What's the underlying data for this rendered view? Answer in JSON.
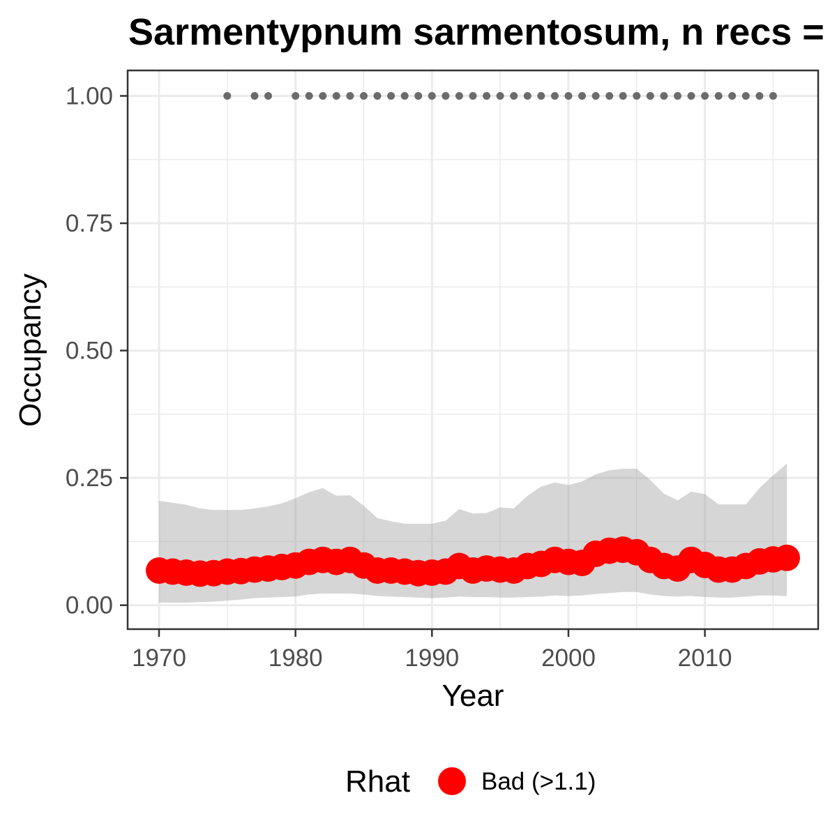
{
  "chart_data": {
    "type": "line",
    "title": "Sarmentypnum sarmentosum, n recs =",
    "xlabel": "Year",
    "ylabel": "Occupancy",
    "xlim": [
      1967.7,
      2018.3
    ],
    "ylim": [
      -0.047,
      1.05
    ],
    "grid": true,
    "x_ticks": [
      1970,
      1980,
      1990,
      2000,
      2010
    ],
    "x_tick_labels": [
      "1970",
      "1980",
      "1990",
      "2000",
      "2010"
    ],
    "x_minor_ticks": [
      1975,
      1985,
      1995,
      2005,
      2015
    ],
    "y_ticks": [
      0,
      0.25,
      0.5,
      0.75,
      1.0
    ],
    "y_tick_labels": [
      "0.00",
      "0.25",
      "0.50",
      "0.75",
      "1.00"
    ],
    "y_minor_ticks": [
      0.125,
      0.375,
      0.625,
      0.875
    ],
    "x": [
      1970,
      1971,
      1972,
      1973,
      1974,
      1975,
      1976,
      1977,
      1978,
      1979,
      1980,
      1981,
      1982,
      1983,
      1984,
      1985,
      1986,
      1987,
      1988,
      1989,
      1990,
      1991,
      1992,
      1993,
      1994,
      1995,
      1996,
      1997,
      1998,
      1999,
      2000,
      2001,
      2002,
      2003,
      2004,
      2005,
      2006,
      2007,
      2008,
      2009,
      2010,
      2011,
      2012,
      2013,
      2014,
      2015,
      2016
    ],
    "series": [
      {
        "name": "Bad (>1.1)",
        "color": "#ff0000",
        "values": [
          0.068,
          0.066,
          0.064,
          0.062,
          0.063,
          0.066,
          0.067,
          0.07,
          0.072,
          0.075,
          0.078,
          0.085,
          0.089,
          0.085,
          0.089,
          0.078,
          0.068,
          0.068,
          0.066,
          0.063,
          0.064,
          0.066,
          0.077,
          0.068,
          0.072,
          0.07,
          0.068,
          0.077,
          0.081,
          0.089,
          0.085,
          0.083,
          0.101,
          0.107,
          0.109,
          0.104,
          0.089,
          0.077,
          0.072,
          0.089,
          0.079,
          0.07,
          0.07,
          0.077,
          0.086,
          0.09,
          0.093
        ]
      }
    ],
    "ribbon": {
      "color": "#999999",
      "lower": [
        0.005,
        0.005,
        0.005,
        0.006,
        0.007,
        0.009,
        0.011,
        0.014,
        0.015,
        0.016,
        0.017,
        0.021,
        0.023,
        0.023,
        0.023,
        0.021,
        0.018,
        0.017,
        0.016,
        0.015,
        0.014,
        0.015,
        0.017,
        0.016,
        0.016,
        0.015,
        0.015,
        0.016,
        0.017,
        0.019,
        0.018,
        0.019,
        0.022,
        0.024,
        0.026,
        0.026,
        0.021,
        0.018,
        0.017,
        0.018,
        0.016,
        0.015,
        0.015,
        0.017,
        0.019,
        0.019,
        0.018
      ],
      "upper": [
        0.205,
        0.201,
        0.197,
        0.19,
        0.187,
        0.187,
        0.187,
        0.19,
        0.194,
        0.2,
        0.21,
        0.222,
        0.23,
        0.215,
        0.216,
        0.195,
        0.171,
        0.165,
        0.16,
        0.16,
        0.16,
        0.166,
        0.189,
        0.18,
        0.181,
        0.192,
        0.19,
        0.215,
        0.233,
        0.241,
        0.236,
        0.243,
        0.257,
        0.265,
        0.268,
        0.268,
        0.246,
        0.219,
        0.206,
        0.223,
        0.218,
        0.198,
        0.198,
        0.198,
        0.23,
        0.255,
        0.278
      ]
    },
    "records": {
      "color": "#6b6b6b",
      "y": 1.0,
      "x": [
        1975,
        1977,
        1978,
        1980,
        1981,
        1982,
        1983,
        1984,
        1985,
        1986,
        1987,
        1988,
        1989,
        1990,
        1991,
        1992,
        1993,
        1994,
        1995,
        1996,
        1997,
        1998,
        1999,
        2000,
        2001,
        2002,
        2003,
        2004,
        2005,
        2006,
        2007,
        2008,
        2009,
        2010,
        2011,
        2012,
        2013,
        2014,
        2015
      ]
    },
    "legend": {
      "title": "Rhat",
      "position": "bottom",
      "entries": [
        {
          "label": "Bad (>1.1)",
          "color": "#ff0000"
        }
      ]
    }
  }
}
